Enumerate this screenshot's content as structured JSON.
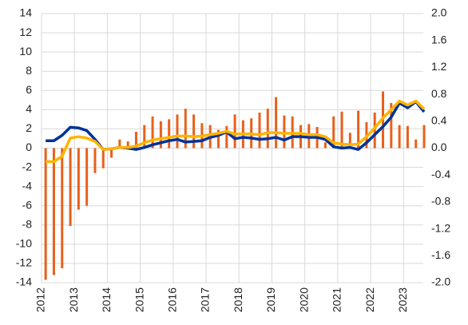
{
  "chart_data": {
    "type": "bar_line",
    "x": [
      2012.125,
      2012.375,
      2012.625,
      2012.875,
      2013.125,
      2013.375,
      2013.625,
      2013.875,
      2014.125,
      2014.375,
      2014.625,
      2014.875,
      2015.125,
      2015.375,
      2015.625,
      2015.875,
      2016.125,
      2016.375,
      2016.625,
      2016.875,
      2017.125,
      2017.375,
      2017.625,
      2017.875,
      2018.125,
      2018.375,
      2018.625,
      2018.875,
      2019.125,
      2019.375,
      2019.625,
      2019.875,
      2020.125,
      2020.375,
      2020.625,
      2020.875,
      2021.125,
      2021.375,
      2021.625,
      2021.875,
      2022.125,
      2022.375,
      2022.625,
      2022.875,
      2023.125,
      2023.375,
      2023.625
    ],
    "series": [
      {
        "kind": "bar",
        "color": "#e8601c",
        "values": [
          -13.7,
          -13.2,
          -12.5,
          -8.1,
          -6.4,
          -6.0,
          -2.6,
          -2.1,
          -1.0,
          0.9,
          0.7,
          1.7,
          2.4,
          3.3,
          2.8,
          3.0,
          3.5,
          4.1,
          3.5,
          2.6,
          2.4,
          1.9,
          2.3,
          3.5,
          2.9,
          3.1,
          3.7,
          4.1,
          5.3,
          3.4,
          3.3,
          2.4,
          2.5,
          2.2,
          0.6,
          3.3,
          3.8,
          1.6,
          3.9,
          2.7,
          3.7,
          5.9,
          4.7,
          2.4,
          2.3,
          0.9,
          2.4
        ]
      },
      {
        "kind": "line",
        "axis": "y2",
        "color": "#003299",
        "values": [
          0.11,
          0.11,
          0.19,
          0.31,
          0.3,
          0.26,
          0.13,
          -0.02,
          -0.01,
          0.01,
          0.0,
          -0.02,
          0.01,
          0.05,
          0.08,
          0.11,
          0.13,
          0.09,
          0.1,
          0.11,
          0.16,
          0.19,
          0.24,
          0.14,
          0.16,
          0.15,
          0.13,
          0.14,
          0.16,
          0.12,
          0.17,
          0.17,
          0.16,
          0.16,
          0.13,
          0.02,
          0.0,
          0.01,
          -0.02,
          0.08,
          0.2,
          0.32,
          0.46,
          0.67,
          0.6,
          0.69,
          0.54
        ]
      },
      {
        "kind": "line",
        "axis": "y2",
        "color": "#ffb400",
        "values": [
          -0.2,
          -0.2,
          -0.12,
          0.15,
          0.17,
          0.15,
          0.1,
          -0.02,
          -0.01,
          0.01,
          0.01,
          0.03,
          0.08,
          0.12,
          0.14,
          0.16,
          0.18,
          0.18,
          0.17,
          0.18,
          0.2,
          0.22,
          0.25,
          0.21,
          0.21,
          0.21,
          0.2,
          0.23,
          0.23,
          0.22,
          0.22,
          0.22,
          0.2,
          0.2,
          0.17,
          0.08,
          0.06,
          0.05,
          0.06,
          0.17,
          0.3,
          0.45,
          0.57,
          0.7,
          0.64,
          0.7,
          0.58
        ]
      }
    ],
    "xlim": [
      2012,
      2023.6
    ],
    "xticks": [
      2012,
      2013,
      2014,
      2015,
      2016,
      2017,
      2018,
      2019,
      2020,
      2021,
      2022,
      2023
    ],
    "ylim": [
      -14,
      14
    ],
    "yticks": [
      -14,
      -12,
      -10,
      -8,
      -6,
      -4,
      -2,
      0,
      2,
      4,
      6,
      8,
      10,
      12,
      14
    ],
    "y2lim": [
      -2,
      2
    ],
    "y2ticks": [
      {
        "value": -2,
        "label": "-2.0"
      },
      -1.6,
      -1.2,
      -0.8,
      -0.4,
      {
        "value": 0,
        "label": "0.0"
      },
      0.4,
      0.8,
      1.2,
      1.6,
      {
        "value": 2,
        "label": "2.0"
      }
    ],
    "grid": true
  }
}
